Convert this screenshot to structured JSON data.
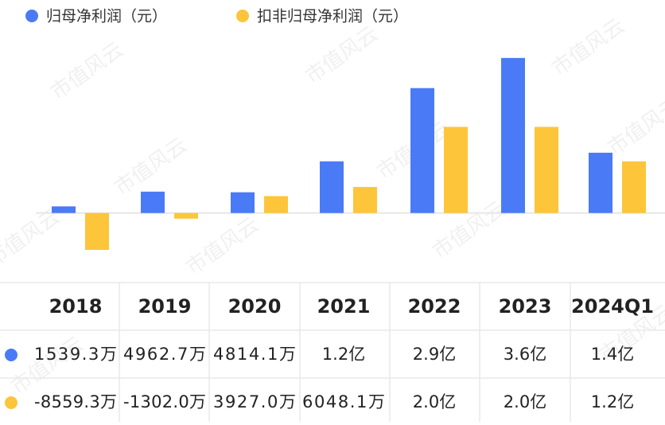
{
  "chart_data": {
    "type": "bar",
    "watermark": "市值风云",
    "categories": [
      "2018",
      "2019",
      "2020",
      "2021",
      "2022",
      "2023",
      "2024Q1"
    ],
    "series": [
      {
        "name": "归母净利润（元）",
        "color": "#4a7af5",
        "values": [
          15393000,
          49627000,
          48141000,
          120000000,
          290000000,
          360000000,
          140000000
        ],
        "value_labels": [
          "1539.3万",
          "4962.7万",
          "4814.1万",
          "1.2亿",
          "2.9亿",
          "3.6亿",
          "1.4亿"
        ]
      },
      {
        "name": "扣非归母净利润（元）",
        "color": "#fcc53a",
        "values": [
          -85593000,
          -13020000,
          39270000,
          60481000,
          200000000,
          200000000,
          120000000
        ],
        "value_labels": [
          "-8559.3万",
          "-1302.0万",
          "3927.0万",
          "6048.1万",
          "2.0亿",
          "2.0亿",
          "1.2亿"
        ]
      }
    ],
    "ylim": [
      -130000000,
      380000000
    ]
  }
}
